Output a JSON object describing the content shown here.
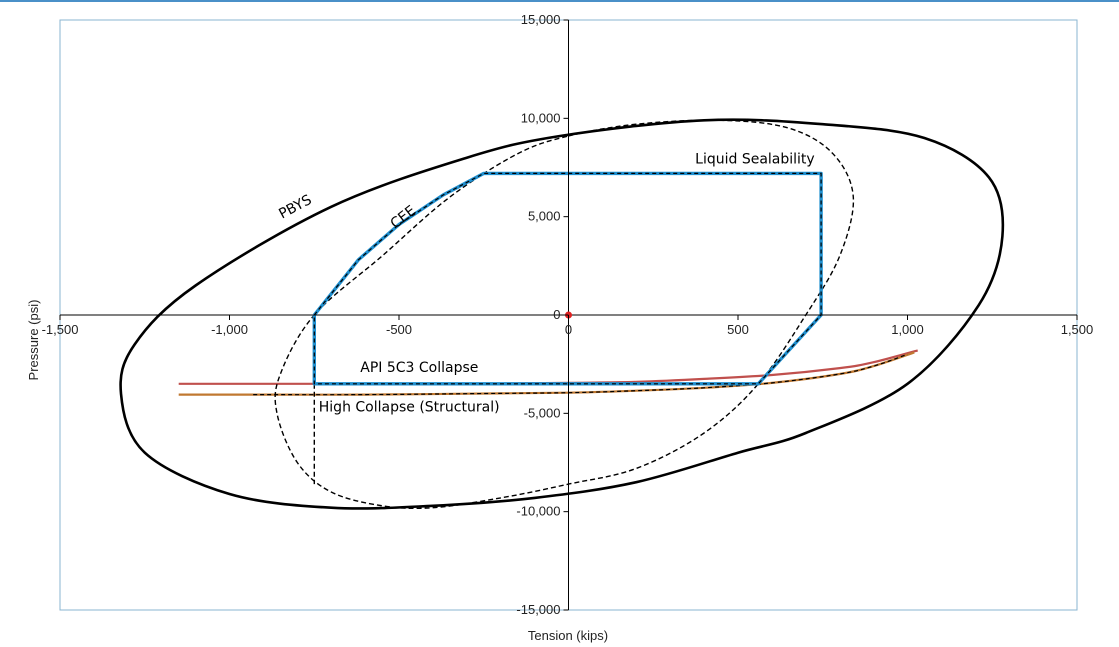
{
  "chart_data": {
    "type": "line",
    "xlabel": "Tension (kips)",
    "ylabel": "Pressure (psi)",
    "xlim": [
      -1500,
      1500
    ],
    "ylim": [
      -15000,
      15000
    ],
    "x_ticks": [
      -1500,
      -1000,
      -500,
      0,
      500,
      1000,
      1500
    ],
    "y_ticks": [
      -15000,
      -10000,
      -5000,
      0,
      5000,
      10000,
      15000
    ],
    "x_tick_labels": [
      "-1,500",
      "-1,000",
      "-500",
      "0",
      "500",
      "1,000",
      "1,500"
    ],
    "y_tick_labels": [
      "-15,000",
      "-10,000",
      "-5,000",
      "0",
      "5,000",
      "10,000",
      "15,000"
    ],
    "grid": false,
    "colors": {
      "pbys": "#000000",
      "cee": "#000000",
      "envelope": "#1f8fcf",
      "api_collapse": "#c0504d",
      "high_collapse": "#c07830",
      "origin": "#e02020",
      "plot_border": "#8ab4d0"
    },
    "annotations": [
      {
        "id": "pbys",
        "text": "PBYS",
        "x": -800,
        "y": 5300
      },
      {
        "id": "cee",
        "text": "CEE",
        "x": -480,
        "y": 4800
      },
      {
        "id": "liquid",
        "text": "Liquid Sealability",
        "x": 550,
        "y": 7700
      },
      {
        "id": "api",
        "text": "API 5C3 Collapse",
        "x": -440,
        "y": -2900
      },
      {
        "id": "high",
        "text": "High Collapse (Structural)",
        "x": -470,
        "y": -4900
      }
    ],
    "series": [
      {
        "id": "pbys",
        "label": "PBYS",
        "style": "solid",
        "x": [
          -25,
          400,
          750,
          1050,
          1240,
          1280,
          1210,
          1000,
          700,
          500,
          200,
          -100,
          -400,
          -700,
          -1000,
          -1250,
          -1320,
          -1280,
          -1100,
          -700,
          -300
        ],
        "y": [
          9100,
          9900,
          9700,
          9000,
          7000,
          4000,
          500,
          -3500,
          -6000,
          -7000,
          -8500,
          -9300,
          -9700,
          -9800,
          -9100,
          -7000,
          -4000,
          -1500,
          1500,
          5500,
          8000
        ]
      },
      {
        "id": "cee",
        "label": "CEE",
        "style": "dashed",
        "x": [
          0,
          200,
          450,
          650,
          780,
          840,
          800,
          700,
          560,
          400,
          200,
          0,
          -200,
          -400,
          -550,
          -700,
          -800,
          -860,
          -850,
          -750,
          -550,
          -350,
          -150
        ],
        "y": [
          9100,
          9700,
          9900,
          9500,
          8200,
          6000,
          3000,
          0,
          -3500,
          -6000,
          -7800,
          -8600,
          -9300,
          -9800,
          -9700,
          -9000,
          -7500,
          -5000,
          -3000,
          0,
          3000,
          6000,
          8200
        ]
      },
      {
        "id": "envelope",
        "label": "Liquid Sealability",
        "style": "solid-dashed-overlay",
        "x": [
          -750,
          -620,
          -500,
          -370,
          -250,
          745,
          745,
          560,
          -750,
          -750
        ],
        "y": [
          0,
          2800,
          4600,
          6100,
          7200,
          7200,
          0,
          -3500,
          -3500,
          0
        ]
      },
      {
        "id": "cee-drop",
        "label": "",
        "style": "dashed",
        "x": [
          -750,
          -750
        ],
        "y": [
          -3500,
          -8600
        ]
      },
      {
        "id": "api5c3",
        "label": "API 5C3 Collapse",
        "style": "solid",
        "x": [
          -1150,
          -900,
          -600,
          -300,
          0,
          200,
          400,
          600,
          800,
          900,
          1030
        ],
        "y": [
          -3500,
          -3500,
          -3500,
          -3500,
          -3450,
          -3400,
          -3250,
          -3050,
          -2700,
          -2400,
          -1800
        ]
      },
      {
        "id": "high-collapse",
        "label": "High Collapse (Structural)",
        "style": "solid",
        "x": [
          -1150,
          -900,
          -600,
          -300,
          0,
          200,
          400,
          600,
          800,
          900,
          1020
        ],
        "y": [
          -4050,
          -4050,
          -4050,
          -4000,
          -3950,
          -3850,
          -3700,
          -3450,
          -3000,
          -2600,
          -1900
        ]
      },
      {
        "id": "high-collapse-dash",
        "label": "",
        "style": "dashed",
        "x": [
          -930,
          -600,
          -300,
          0,
          200,
          400,
          600,
          800,
          900,
          1000
        ],
        "y": [
          -4050,
          -4050,
          -4000,
          -3950,
          -3850,
          -3700,
          -3450,
          -3000,
          -2600,
          -2000
        ]
      }
    ],
    "points": [
      {
        "id": "origin",
        "x": 0,
        "y": 0
      }
    ]
  }
}
